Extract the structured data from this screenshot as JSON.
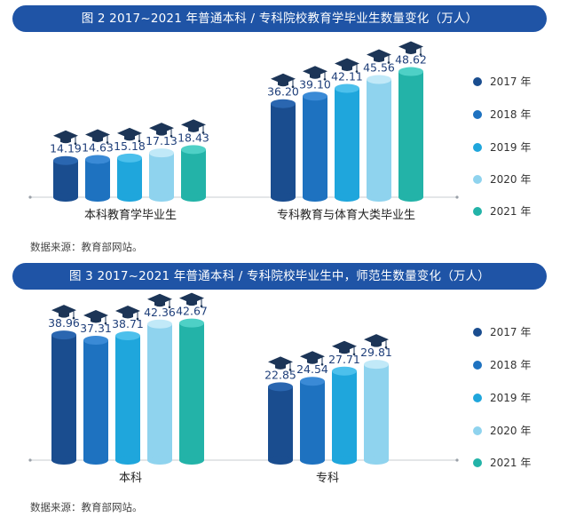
{
  "figures": [
    {
      "title": "图 2  2017~2021 年普通本科 / 专科院校教育学毕业生数量变化（万人）",
      "source": "数据来源：教育部网站。"
    },
    {
      "title": "图 3  2017~2021 年普通本科 / 专科院校毕业生中，师范生数量变化（万人）",
      "source": "数据来源：教育部网站。"
    }
  ],
  "colors": {
    "banner": "#1f54a6",
    "series": [
      "#1a4d8f",
      "#1e72c0",
      "#1fa6dc",
      "#8fd3ee",
      "#23b3a8"
    ],
    "series_light": [
      "#2a66b0",
      "#3a8ad6",
      "#4cc0ec",
      "#c1e9f8",
      "#4ed0c6"
    ],
    "cap": "#1c3557"
  },
  "icons": {
    "bar_cap": "graduation-cap-icon",
    "legend_marker": "circle-icon"
  },
  "chart_data": [
    {
      "type": "bar",
      "title": "图 2  2017~2021 年普通本科 / 专科院校教育学毕业生数量变化（万人）",
      "categories": [
        "本科教育学毕业生",
        "专科教育与体育大类毕业生"
      ],
      "series": [
        {
          "name": "2017 年",
          "values": [
            14.19,
            36.2
          ]
        },
        {
          "name": "2018 年",
          "values": [
            14.63,
            39.1
          ]
        },
        {
          "name": "2019 年",
          "values": [
            15.18,
            42.11
          ]
        },
        {
          "name": "2020 年",
          "values": [
            17.13,
            45.56
          ]
        },
        {
          "name": "2021 年",
          "values": [
            18.43,
            48.62
          ]
        }
      ],
      "ylim": [
        0,
        55
      ],
      "grid": false,
      "legend": "right"
    },
    {
      "type": "bar",
      "title": "图 3  2017~2021 年普通本科 / 专科院校毕业生中，师范生数量变化（万人）",
      "categories": [
        "本科",
        "专科"
      ],
      "series": [
        {
          "name": "2017 年",
          "values": [
            38.96,
            22.85
          ]
        },
        {
          "name": "2018 年",
          "values": [
            37.31,
            24.54
          ]
        },
        {
          "name": "2019 年",
          "values": [
            38.71,
            27.71
          ]
        },
        {
          "name": "2020 年",
          "values": [
            42.36,
            29.81
          ]
        },
        {
          "name": "2021 年",
          "values": [
            42.67,
            null
          ]
        }
      ],
      "ylim": [
        0,
        47
      ],
      "grid": false,
      "legend": "right"
    }
  ]
}
